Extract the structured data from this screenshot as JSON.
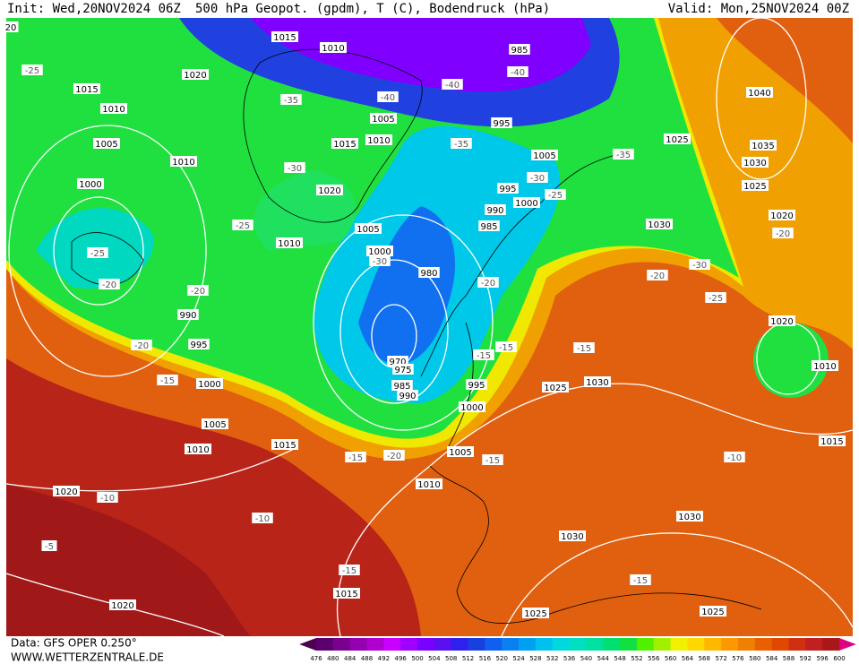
{
  "header": {
    "init": "Init: Wed,20NOV2024 06Z",
    "title": "500 hPa Geopot. (gpdm), T (C), Bodendruck (hPa)",
    "valid": "Valid: Mon,25NOV2024 00Z"
  },
  "footer": {
    "data": "Data: GFS OPER 0.250°",
    "site": "WWW.WETTERZENTRALE.DE"
  },
  "map": {
    "pressure_labels": [
      20,
      1015,
      1010,
      985,
      1020,
      1015,
      1010,
      1005,
      995,
      1015,
      1010,
      1025,
      1040,
      1035,
      1030,
      1025,
      1005,
      1010,
      1005,
      1000,
      1020,
      995,
      1000,
      990,
      985,
      1030,
      1020,
      1005,
      1010,
      1000,
      980,
      990,
      995,
      1020,
      1010,
      970,
      975,
      985,
      990,
      995,
      1025,
      1030,
      1000,
      1000,
      1005,
      1015,
      1010,
      1005,
      1015,
      1010,
      1020,
      1030,
      1030,
      1015,
      1020,
      1025,
      1025
    ],
    "temperature_labels": [
      -25,
      -35,
      -40,
      -40,
      -40,
      -35,
      -35,
      -30,
      -30,
      -25,
      -25,
      -25,
      -20,
      -20,
      -30,
      -20,
      -30,
      -25,
      -20,
      -20,
      -20,
      -15,
      -15,
      -15,
      -15,
      -20,
      -15,
      -15,
      -10,
      -10,
      -10,
      -5,
      -15,
      -15
    ]
  },
  "legend": {
    "ticks": [
      476,
      480,
      484,
      488,
      492,
      496,
      500,
      504,
      508,
      512,
      516,
      520,
      524,
      528,
      532,
      536,
      540,
      544,
      548,
      552,
      556,
      560,
      564,
      568,
      572,
      576,
      580,
      584,
      588,
      592,
      596,
      600
    ],
    "colors": [
      "#4b0050",
      "#5c0070",
      "#7a0090",
      "#9400b0",
      "#b000d0",
      "#c800ff",
      "#a000ff",
      "#7a00ff",
      "#5a10f0",
      "#3020f0",
      "#1840e0",
      "#1060f0",
      "#0a80f0",
      "#00a0f0",
      "#00c0f0",
      "#00d8e0",
      "#00e0c0",
      "#00e0a0",
      "#00e070",
      "#10e040",
      "#50f000",
      "#a0f000",
      "#f0f000",
      "#ffd800",
      "#ffb800",
      "#ff9800",
      "#f08000",
      "#e86000",
      "#e04800",
      "#d03010",
      "#c02020",
      "#a81818",
      "#e00080"
    ]
  }
}
